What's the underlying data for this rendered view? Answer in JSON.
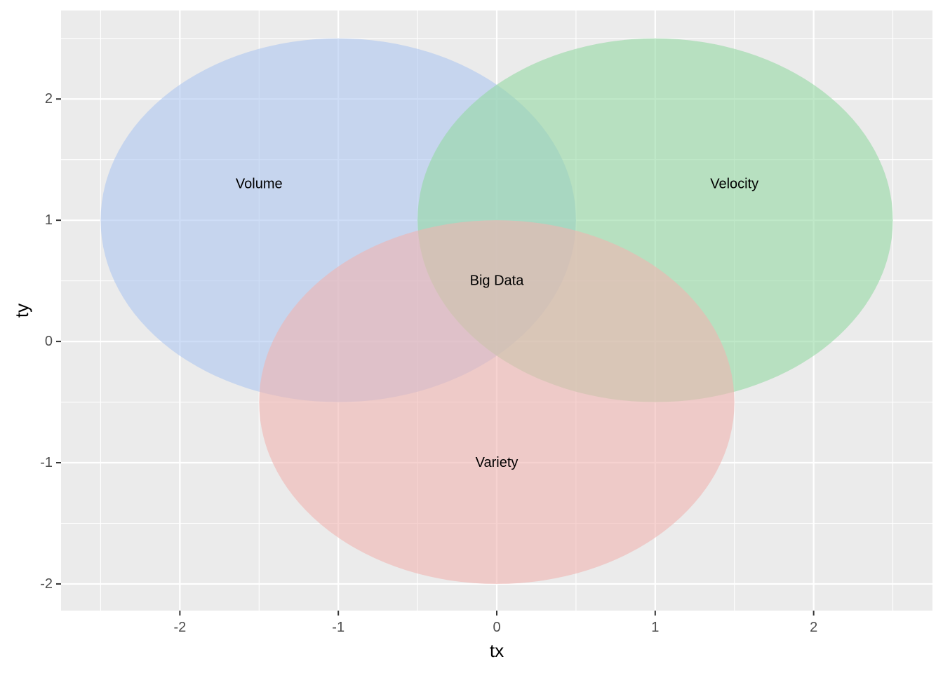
{
  "chart_data": {
    "type": "venn",
    "xlabel": "tx",
    "ylabel": "ty",
    "xlim": [
      -2.75,
      2.75
    ],
    "ylim": [
      -2.22,
      2.73
    ],
    "x_ticks": [
      -2,
      -1,
      0,
      1,
      2
    ],
    "x_tick_labels": [
      "-2",
      "-1",
      "0",
      "1",
      "2"
    ],
    "y_ticks": [
      -2,
      -1,
      0,
      1,
      2
    ],
    "y_tick_labels": [
      "-2",
      "-1",
      "0",
      "1",
      "2"
    ],
    "grid": true,
    "sets": [
      {
        "label": "Volume",
        "cx": -1,
        "cy": 1,
        "r": 1.5,
        "color": "#aec7f0",
        "label_x": -1.5,
        "label_y": 1.3
      },
      {
        "label": "Velocity",
        "cx": 1,
        "cy": 1,
        "r": 1.5,
        "color": "#94d9a4",
        "label_x": 1.5,
        "label_y": 1.3
      },
      {
        "label": "Variety",
        "cx": 0,
        "cy": -0.5,
        "r": 1.5,
        "color": "#f0b4b1",
        "label_x": 0,
        "label_y": -1
      }
    ],
    "fill_alpha": 0.6,
    "center_label": {
      "text": "Big Data",
      "x": 0,
      "y": 0.5
    },
    "panel_background": "#ebebeb",
    "grid_color": "#ffffff"
  }
}
